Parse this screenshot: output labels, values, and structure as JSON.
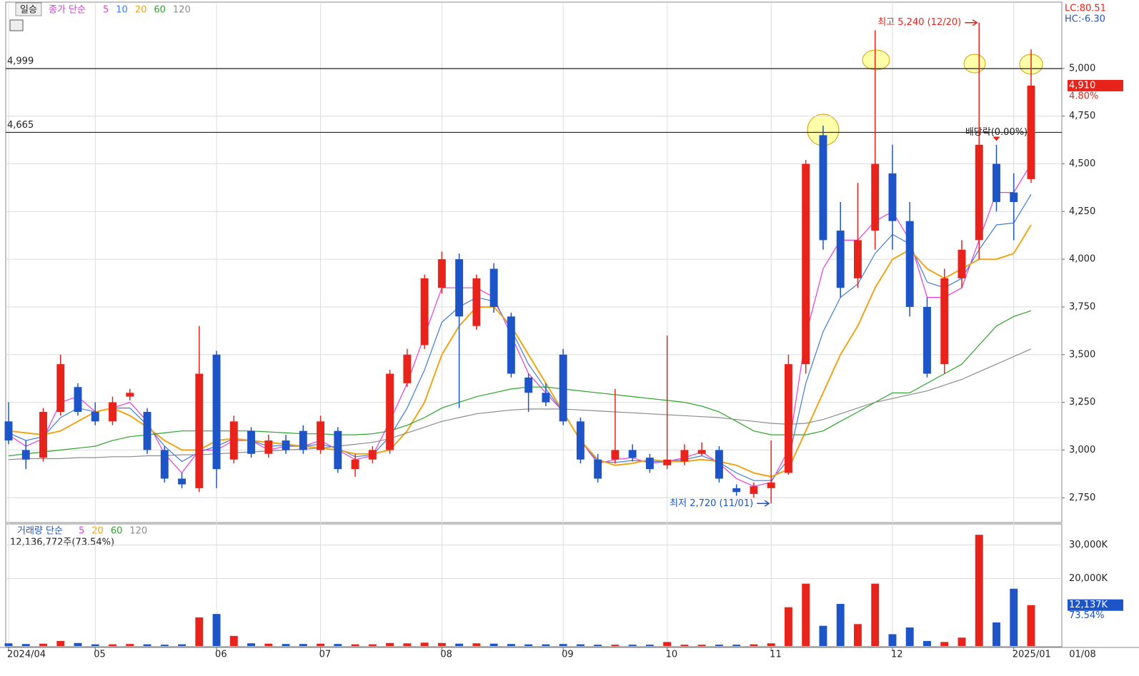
{
  "chart_data": [
    {
      "type": "candlestick",
      "panel_label": "일승",
      "title": "종가 단순",
      "categories": [
        "2024/04",
        null,
        null,
        null,
        null,
        "05",
        null,
        null,
        null,
        null,
        null,
        null,
        "06",
        null,
        null,
        null,
        null,
        null,
        "07",
        null,
        null,
        null,
        null,
        null,
        null,
        "08",
        null,
        null,
        null,
        null,
        null,
        null,
        "09",
        null,
        null,
        null,
        null,
        null,
        "10",
        null,
        null,
        null,
        null,
        null,
        "11",
        null,
        null,
        null,
        null,
        null,
        null,
        "12",
        null,
        null,
        null,
        null,
        null,
        null,
        "2025/01",
        null
      ],
      "open": [
        3150,
        3000,
        2960,
        3200,
        3330,
        3200,
        3150,
        3280,
        3200,
        3000,
        2850,
        2800,
        3500,
        2950,
        3100,
        2980,
        3050,
        3100,
        3000,
        3100,
        2900,
        2950,
        3000,
        3350,
        3550,
        3850,
        4000,
        3650,
        3950,
        3700,
        3380,
        3300,
        3500,
        3150,
        2950,
        2950,
        3000,
        2960,
        2920,
        2940,
        2980,
        3000,
        2800,
        2770,
        2800,
        2880,
        3450,
        4650,
        4150,
        3900,
        4150,
        4450,
        4200,
        3750,
        3450,
        3900,
        4100,
        4500,
        4350,
        4420
      ],
      "high": [
        3250,
        3050,
        3220,
        3500,
        3350,
        3250,
        3280,
        3320,
        3220,
        3020,
        2880,
        3650,
        3520,
        3180,
        3120,
        3080,
        3080,
        3130,
        3180,
        3120,
        2980,
        3020,
        3420,
        3530,
        3920,
        4040,
        4030,
        3920,
        3980,
        3720,
        3400,
        3350,
        3530,
        3170,
        2980,
        3320,
        3030,
        2980,
        3600,
        3030,
        3040,
        3020,
        2820,
        2830,
        3050,
        3500,
        4520,
        4700,
        4300,
        4400,
        5200,
        4600,
        4300,
        3800,
        3950,
        4100,
        5240,
        4600,
        4450,
        5100
      ],
      "low": [
        3030,
        2900,
        2940,
        3180,
        3180,
        3130,
        3130,
        3260,
        2980,
        2830,
        2800,
        2780,
        2800,
        2930,
        2960,
        2960,
        2980,
        2980,
        2980,
        2880,
        2860,
        2930,
        2980,
        3330,
        3530,
        3820,
        3220,
        3630,
        3720,
        3380,
        3200,
        3230,
        3130,
        2930,
        2830,
        2930,
        2940,
        2880,
        2900,
        2920,
        2970,
        2830,
        2760,
        2750,
        2720,
        2870,
        3400,
        4050,
        3800,
        3850,
        4050,
        4050,
        3700,
        3380,
        3400,
        3850,
        4000,
        4250,
        4100,
        4400
      ],
      "close": [
        3050,
        2950,
        3200,
        3450,
        3200,
        3150,
        3250,
        3300,
        3000,
        2850,
        2820,
        3400,
        2900,
        3150,
        2980,
        3050,
        3000,
        3000,
        3150,
        2900,
        2950,
        3000,
        3400,
        3500,
        3900,
        4000,
        3700,
        3900,
        3750,
        3400,
        3300,
        3250,
        3150,
        2950,
        2850,
        3000,
        2960,
        2900,
        2950,
        3000,
        3000,
        2850,
        2780,
        2810,
        2830,
        3450,
        4500,
        4100,
        3850,
        4100,
        4500,
        4200,
        3750,
        3400,
        3900,
        4050,
        4600,
        4300,
        4300,
        4910
      ],
      "up_color": "#e8231b",
      "down_color": "#1d55c8",
      "series": [
        {
          "name": "5",
          "color": "#e83ce0",
          "values": [
            3080,
            3020,
            3060,
            3250,
            3280,
            3200,
            3220,
            3250,
            3150,
            2980,
            2880,
            3000,
            3000,
            3050,
            3050,
            3000,
            3020,
            3020,
            3050,
            3000,
            2950,
            2970,
            3150,
            3350,
            3600,
            3850,
            3850,
            3850,
            3800,
            3600,
            3400,
            3300,
            3200,
            3050,
            2930,
            2950,
            2960,
            2930,
            2940,
            2960,
            2990,
            2930,
            2850,
            2810,
            2830,
            3000,
            3600,
            3950,
            4100,
            4100,
            4200,
            4250,
            4100,
            3800,
            3800,
            3850,
            4100,
            4350,
            4350,
            4500
          ]
        },
        {
          "name": "10",
          "color": "#3d7be0",
          "values": [
            3090,
            3050,
            3070,
            3170,
            3220,
            3200,
            3220,
            3220,
            3130,
            3020,
            2940,
            2990,
            3020,
            3060,
            3050,
            3020,
            3025,
            3020,
            3030,
            3010,
            2965,
            2975,
            3070,
            3220,
            3420,
            3670,
            3750,
            3800,
            3780,
            3630,
            3450,
            3320,
            3200,
            3050,
            2940,
            2935,
            2945,
            2940,
            2940,
            2950,
            2970,
            2935,
            2880,
            2840,
            2840,
            2950,
            3350,
            3620,
            3800,
            3870,
            4030,
            4130,
            4080,
            3880,
            3850,
            3900,
            4050,
            4180,
            4190,
            4340
          ]
        },
        {
          "name": "20",
          "color": "#f0a416",
          "values": [
            3100,
            3090,
            3080,
            3100,
            3150,
            3200,
            3220,
            3180,
            3120,
            3050,
            3000,
            3000,
            3050,
            3060,
            3050,
            3040,
            3030,
            3020,
            3010,
            3000,
            2980,
            2980,
            3000,
            3100,
            3250,
            3500,
            3650,
            3750,
            3750,
            3650,
            3500,
            3350,
            3200,
            3050,
            2950,
            2920,
            2930,
            2950,
            2940,
            2940,
            2950,
            2940,
            2920,
            2880,
            2860,
            2900,
            3100,
            3300,
            3500,
            3650,
            3850,
            4000,
            4050,
            3950,
            3900,
            3950,
            4000,
            4000,
            4030,
            4180
          ]
        },
        {
          "name": "60",
          "color": "#2aa52a",
          "values": [
            2970,
            2980,
            2990,
            3000,
            3010,
            3020,
            3050,
            3070,
            3080,
            3090,
            3100,
            3100,
            3100,
            3100,
            3100,
            3095,
            3090,
            3085,
            3085,
            3080,
            3080,
            3085,
            3100,
            3130,
            3170,
            3220,
            3250,
            3280,
            3300,
            3320,
            3330,
            3330,
            3320,
            3310,
            3300,
            3290,
            3280,
            3270,
            3260,
            3250,
            3230,
            3200,
            3150,
            3100,
            3080,
            3080,
            3080,
            3100,
            3150,
            3200,
            3250,
            3300,
            3300,
            3350,
            3400,
            3450,
            3550,
            3650,
            3700,
            3730
          ]
        },
        {
          "name": "120",
          "color": "#8c8c8c",
          "values": [
            2950,
            2955,
            2955,
            2955,
            2960,
            2960,
            2965,
            2965,
            2970,
            2970,
            2975,
            2975,
            2980,
            2985,
            2990,
            2995,
            3000,
            3005,
            3010,
            3020,
            3030,
            3040,
            3060,
            3090,
            3120,
            3150,
            3170,
            3190,
            3200,
            3210,
            3215,
            3215,
            3215,
            3210,
            3205,
            3200,
            3195,
            3190,
            3185,
            3180,
            3175,
            3170,
            3160,
            3150,
            3140,
            3135,
            3140,
            3160,
            3190,
            3220,
            3250,
            3270,
            3290,
            3310,
            3340,
            3370,
            3410,
            3450,
            3490,
            3530
          ]
        }
      ],
      "ylim": [
        2620,
        5340
      ],
      "yticks": [
        {
          "value": 2750,
          "label": "2,750"
        },
        {
          "value": 3000,
          "label": "3,000"
        },
        {
          "value": 3250,
          "label": "3,250"
        },
        {
          "value": 3500,
          "label": "3,500"
        },
        {
          "value": 3750,
          "label": "3,750"
        },
        {
          "value": 4000,
          "label": "4,000"
        },
        {
          "value": 4250,
          "label": "4,250"
        },
        {
          "value": 4500,
          "label": "4,500"
        },
        {
          "value": 4750,
          "label": "4,750"
        },
        {
          "value": 5000,
          "label": "5,000"
        }
      ],
      "grid": true,
      "levels": [
        {
          "value": 4999,
          "label": "4,999"
        },
        {
          "value": 4665,
          "label": "4,665"
        }
      ],
      "annotations": [
        {
          "text": "최고 5,240 (12/20)",
          "index": 56,
          "value": 5240,
          "color": "#e8231b"
        },
        {
          "text": "최저 2,720 (11/01)",
          "index": 44,
          "value": 2720,
          "color": "#1d55c8"
        },
        {
          "text": "배당락(0.00%)",
          "index": 57,
          "value": 4620,
          "color": "#222"
        }
      ],
      "last_price": {
        "value": 4910,
        "label": "4,910"
      },
      "last_change": "4.80%",
      "indicators": [
        "LC:80.51",
        "HC:-6.30"
      ],
      "x_end_label": "01/08"
    },
    {
      "type": "bar",
      "title": "거래량 단순",
      "legend": [
        {
          "name": "5",
          "color": "#e83ce0"
        },
        {
          "name": "20",
          "color": "#f0a416"
        },
        {
          "name": "60",
          "color": "#2aa52a"
        },
        {
          "name": "120",
          "color": "#8c8c8c"
        }
      ],
      "summary": "12,136,772주(73.54%)",
      "values": [
        800,
        600,
        700,
        1500,
        900,
        500,
        500,
        600,
        500,
        400,
        500,
        8500,
        9500,
        3000,
        800,
        700,
        600,
        600,
        700,
        600,
        500,
        500,
        900,
        800,
        1000,
        900,
        700,
        800,
        700,
        600,
        500,
        500,
        600,
        500,
        400,
        400,
        400,
        400,
        1200,
        400,
        400,
        400,
        400,
        500,
        800,
        11500,
        18500,
        6000,
        12500,
        6500,
        18500,
        3500,
        5500,
        1500,
        1200,
        2500,
        33000,
        7000,
        17000,
        12137
      ],
      "ylim": [
        0,
        36000
      ],
      "yticks": [
        {
          "value": 20000,
          "label": "20,000K"
        },
        {
          "value": 30000,
          "label": "30,000K"
        }
      ],
      "last_value": {
        "value": 12137,
        "label": "12,137K"
      },
      "last_ratio": "73.54%"
    }
  ]
}
